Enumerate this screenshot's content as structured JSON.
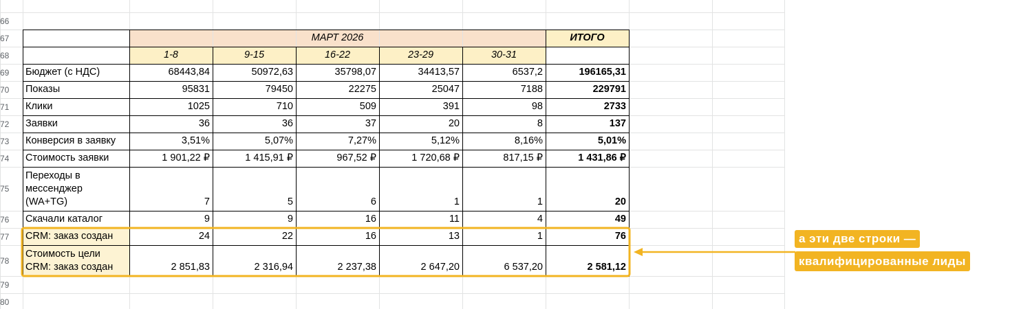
{
  "row_numbers": [
    "66",
    "67",
    "68",
    "69",
    "70",
    "71",
    "72",
    "73",
    "74",
    "75",
    "76",
    "77",
    "78",
    "79",
    "80"
  ],
  "table": {
    "month": "МАРТ 2026",
    "total_header": "ИТОГО",
    "periods": [
      "1-8",
      "9-15",
      "16-22",
      "23-29",
      "30-31"
    ],
    "rows": [
      [
        "Бюджет (с НДС)",
        "68443,84",
        "50972,63",
        "35798,07",
        "34413,57",
        "6537,2",
        "196165,31"
      ],
      [
        "Показы",
        "95831",
        "79450",
        "22275",
        "25047",
        "7188",
        "229791"
      ],
      [
        "Клики",
        "1025",
        "710",
        "509",
        "391",
        "98",
        "2733"
      ],
      [
        "Заявки",
        "36",
        "36",
        "37",
        "20",
        "8",
        "137"
      ],
      [
        "Конверсия в заявку",
        "3,51%",
        "5,07%",
        "7,27%",
        "5,12%",
        "8,16%",
        "5,01%"
      ],
      [
        "Стоимость заявки",
        "1 901,22 ₽",
        "1 415,91 ₽",
        "967,52 ₽",
        "1 720,68 ₽",
        "817,15 ₽",
        "1 431,86 ₽"
      ],
      [
        "Переходы в\nмессенджер\n(WA+TG)",
        "7",
        "5",
        "6",
        "1",
        "1",
        "20"
      ],
      [
        "Скачали каталог",
        "9",
        "9",
        "16",
        "11",
        "4",
        "49"
      ],
      [
        "CRM: заказ создан",
        "24",
        "22",
        "16",
        "13",
        "1",
        "76"
      ],
      [
        "Стоимость цели\nCRM: заказ создан",
        "2 851,83",
        "2 316,94",
        "2 237,38",
        "2 647,20",
        "6 537,20",
        "2 581,12"
      ]
    ]
  },
  "annotation": {
    "lines": [
      "а эти две строки —",
      "квалифицированные лиды"
    ]
  }
}
